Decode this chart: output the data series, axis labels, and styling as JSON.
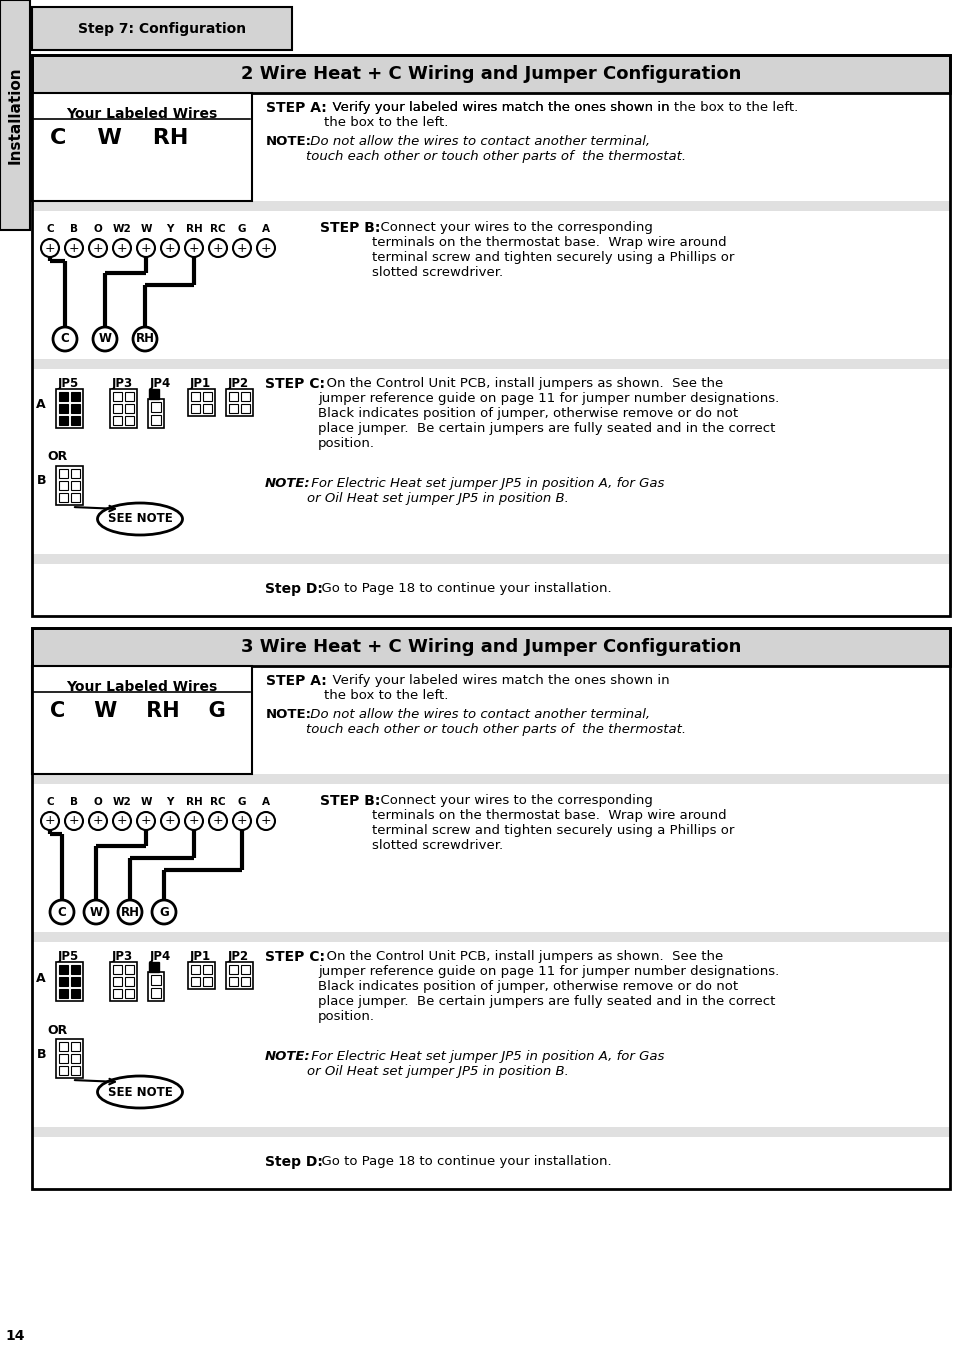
{
  "page_bg": "#ffffff",
  "sidebar_text": "Installation",
  "tab_text": "Step 7: Configuration",
  "section1_title": "2 Wire Heat + C Wiring and Jumper Configuration",
  "section2_title": "3 Wire Heat + C Wiring and Jumper Configuration",
  "labeled_wires_title": "Your Labeled Wires",
  "section1_wires": "C    W    RH",
  "section2_wires": "C    W    RH    G",
  "step_a_bold": "STEP A:",
  "step_a_text1": "  Verify your labeled wires match the ones shown in the box to the left.",
  "note_bold": "NOTE:",
  "note_italic": " Do not allow the wires to contact another terminal,\ntouch each other or touch other parts of  the thermostat.",
  "step_b_bold": "STEP B:",
  "step_b_text": "  Connect your wires to the corresponding\nterminals on the thermostat base.  Wrap wire around\nterminal screw and tighten securely using a Phillips or\nslotted screwdriver.",
  "terminals": [
    "C",
    "B",
    "O",
    "W2",
    "W",
    "Y",
    "RH",
    "RC",
    "G",
    "A"
  ],
  "step_c_bold": "STEP C:",
  "step_c_text": "  On the Control Unit PCB, install jumpers as shown.  See the jumper reference guide on page 11 for jumper number designations. Black indicates position of jumper, otherwise remove or do not place jumper.  Be certain jumpers are fully seated and in the correct position.",
  "jumper_labels": [
    "JP5",
    "JP3",
    "JP4",
    "JP1",
    "JP2"
  ],
  "note2_bold": "NOTE:",
  "note2_italic": " For Electric Heat set jumper JP5 in position A, for Gas\nor Oil Heat set jumper JP5 in position B.",
  "step_d_bold": "Step D:",
  "step_d_text": "  Go to Page 18 to continue your installation.",
  "page_num": "14"
}
